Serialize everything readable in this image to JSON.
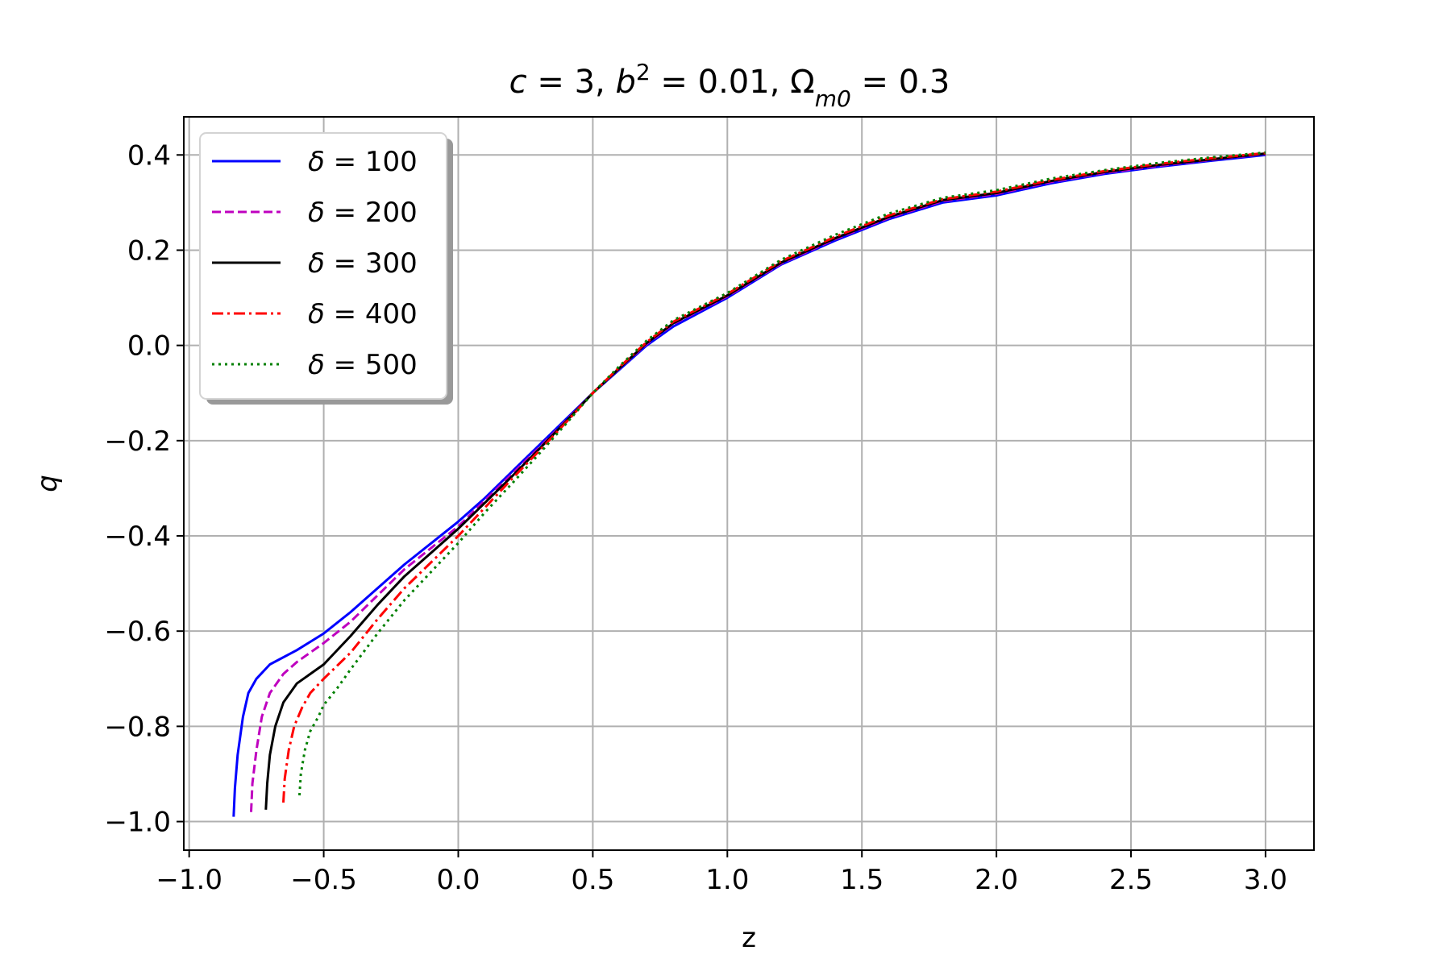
{
  "chart_data": {
    "type": "line",
    "title": {
      "c_sym": "c",
      "c_val": " = 3, ",
      "b_sym": "b",
      "b_sup": "2",
      "b_val": " = 0.01, ",
      "om_sym": "Ω",
      "om_sub": "m0",
      "om_val": " = 0.3"
    },
    "xlabel": "z",
    "ylabel": "q",
    "xlim": [
      -1.02,
      3.18
    ],
    "ylim": [
      -1.06,
      0.48
    ],
    "xticks": [
      -1.0,
      -0.5,
      0.0,
      0.5,
      1.0,
      1.5,
      2.0,
      2.5,
      3.0
    ],
    "xtick_labels": [
      "−1.0",
      "−0.5",
      "0.0",
      "0.5",
      "1.0",
      "1.5",
      "2.0",
      "2.5",
      "3.0"
    ],
    "yticks": [
      0.4,
      0.2,
      0.0,
      -0.2,
      -0.4,
      -0.6,
      -0.8,
      -1.0
    ],
    "ytick_labels": [
      "0.4",
      "0.2",
      "0.0",
      "−0.2",
      "−0.4",
      "−0.6",
      "−0.8",
      "−1.0"
    ],
    "grid": true,
    "legend_position": "top-left",
    "legend_symbol": "δ",
    "series": [
      {
        "name": "δ = 100",
        "label_value": "100",
        "color": "#0000ff",
        "dash": "solid",
        "points": [
          [
            -0.835,
            -0.99
          ],
          [
            -0.83,
            -0.93
          ],
          [
            -0.82,
            -0.86
          ],
          [
            -0.8,
            -0.78
          ],
          [
            -0.78,
            -0.73
          ],
          [
            -0.75,
            -0.7
          ],
          [
            -0.7,
            -0.67
          ],
          [
            -0.6,
            -0.64
          ],
          [
            -0.5,
            -0.605
          ],
          [
            -0.4,
            -0.56
          ],
          [
            -0.3,
            -0.51
          ],
          [
            -0.2,
            -0.46
          ],
          [
            -0.1,
            -0.415
          ],
          [
            0.0,
            -0.37
          ],
          [
            0.1,
            -0.32
          ],
          [
            0.2,
            -0.265
          ],
          [
            0.3,
            -0.21
          ],
          [
            0.4,
            -0.155
          ],
          [
            0.5,
            -0.1
          ],
          [
            0.6,
            -0.05
          ],
          [
            0.7,
            0.0
          ],
          [
            0.8,
            0.04
          ],
          [
            1.0,
            0.1
          ],
          [
            1.2,
            0.17
          ],
          [
            1.4,
            0.22
          ],
          [
            1.6,
            0.265
          ],
          [
            1.8,
            0.3
          ],
          [
            2.0,
            0.315
          ],
          [
            2.2,
            0.34
          ],
          [
            2.4,
            0.36
          ],
          [
            2.6,
            0.375
          ],
          [
            2.8,
            0.388
          ],
          [
            3.0,
            0.4
          ]
        ]
      },
      {
        "name": "δ = 200",
        "label_value": "200",
        "color": "#bf00bf",
        "dash": "dashed",
        "points": [
          [
            -0.77,
            -0.98
          ],
          [
            -0.765,
            -0.92
          ],
          [
            -0.75,
            -0.85
          ],
          [
            -0.73,
            -0.78
          ],
          [
            -0.7,
            -0.73
          ],
          [
            -0.65,
            -0.69
          ],
          [
            -0.6,
            -0.665
          ],
          [
            -0.5,
            -0.625
          ],
          [
            -0.4,
            -0.58
          ],
          [
            -0.3,
            -0.525
          ],
          [
            -0.2,
            -0.47
          ],
          [
            -0.1,
            -0.425
          ],
          [
            0.0,
            -0.38
          ],
          [
            0.1,
            -0.325
          ],
          [
            0.2,
            -0.27
          ],
          [
            0.3,
            -0.215
          ],
          [
            0.4,
            -0.158
          ],
          [
            0.5,
            -0.1
          ],
          [
            0.6,
            -0.048
          ],
          [
            0.7,
            0.003
          ],
          [
            0.8,
            0.045
          ],
          [
            1.0,
            0.103
          ],
          [
            1.2,
            0.172
          ],
          [
            1.4,
            0.223
          ],
          [
            1.6,
            0.268
          ],
          [
            1.8,
            0.303
          ],
          [
            2.0,
            0.318
          ],
          [
            2.2,
            0.343
          ],
          [
            2.4,
            0.362
          ],
          [
            2.6,
            0.377
          ],
          [
            2.8,
            0.39
          ],
          [
            3.0,
            0.402
          ]
        ]
      },
      {
        "name": "δ = 300",
        "label_value": "300",
        "color": "#000000",
        "dash": "solid",
        "points": [
          [
            -0.715,
            -0.975
          ],
          [
            -0.71,
            -0.92
          ],
          [
            -0.7,
            -0.86
          ],
          [
            -0.68,
            -0.8
          ],
          [
            -0.65,
            -0.75
          ],
          [
            -0.6,
            -0.71
          ],
          [
            -0.5,
            -0.67
          ],
          [
            -0.4,
            -0.61
          ],
          [
            -0.3,
            -0.545
          ],
          [
            -0.2,
            -0.485
          ],
          [
            -0.1,
            -0.435
          ],
          [
            0.0,
            -0.385
          ],
          [
            0.1,
            -0.33
          ],
          [
            0.2,
            -0.275
          ],
          [
            0.3,
            -0.218
          ],
          [
            0.4,
            -0.16
          ],
          [
            0.5,
            -0.1
          ],
          [
            0.6,
            -0.047
          ],
          [
            0.7,
            0.005
          ],
          [
            0.8,
            0.047
          ],
          [
            1.0,
            0.105
          ],
          [
            1.2,
            0.174
          ],
          [
            1.4,
            0.225
          ],
          [
            1.6,
            0.27
          ],
          [
            1.8,
            0.305
          ],
          [
            2.0,
            0.32
          ],
          [
            2.2,
            0.345
          ],
          [
            2.4,
            0.364
          ],
          [
            2.6,
            0.379
          ],
          [
            2.8,
            0.391
          ],
          [
            3.0,
            0.403
          ]
        ]
      },
      {
        "name": "δ = 400",
        "label_value": "400",
        "color": "#ff0000",
        "dash": "dashdot",
        "points": [
          [
            -0.65,
            -0.96
          ],
          [
            -0.645,
            -0.91
          ],
          [
            -0.63,
            -0.85
          ],
          [
            -0.61,
            -0.8
          ],
          [
            -0.58,
            -0.76
          ],
          [
            -0.55,
            -0.73
          ],
          [
            -0.5,
            -0.7
          ],
          [
            -0.4,
            -0.645
          ],
          [
            -0.3,
            -0.575
          ],
          [
            -0.2,
            -0.51
          ],
          [
            -0.1,
            -0.455
          ],
          [
            0.0,
            -0.4
          ],
          [
            0.1,
            -0.34
          ],
          [
            0.2,
            -0.28
          ],
          [
            0.3,
            -0.222
          ],
          [
            0.4,
            -0.162
          ],
          [
            0.5,
            -0.1
          ],
          [
            0.6,
            -0.045
          ],
          [
            0.7,
            0.007
          ],
          [
            0.8,
            0.05
          ],
          [
            1.0,
            0.108
          ],
          [
            1.2,
            0.177
          ],
          [
            1.4,
            0.228
          ],
          [
            1.6,
            0.273
          ],
          [
            1.8,
            0.307
          ],
          [
            2.0,
            0.323
          ],
          [
            2.2,
            0.347
          ],
          [
            2.4,
            0.366
          ],
          [
            2.6,
            0.381
          ],
          [
            2.8,
            0.393
          ],
          [
            3.0,
            0.404
          ]
        ]
      },
      {
        "name": "δ = 500",
        "label_value": "500",
        "color": "#008000",
        "dash": "dotted",
        "points": [
          [
            -0.59,
            -0.945
          ],
          [
            -0.585,
            -0.9
          ],
          [
            -0.57,
            -0.85
          ],
          [
            -0.55,
            -0.81
          ],
          [
            -0.52,
            -0.78
          ],
          [
            -0.5,
            -0.755
          ],
          [
            -0.45,
            -0.72
          ],
          [
            -0.4,
            -0.68
          ],
          [
            -0.3,
            -0.605
          ],
          [
            -0.2,
            -0.535
          ],
          [
            -0.1,
            -0.475
          ],
          [
            0.0,
            -0.415
          ],
          [
            0.1,
            -0.35
          ],
          [
            0.2,
            -0.29
          ],
          [
            0.3,
            -0.228
          ],
          [
            0.4,
            -0.165
          ],
          [
            0.5,
            -0.1
          ],
          [
            0.6,
            -0.043
          ],
          [
            0.7,
            0.01
          ],
          [
            0.8,
            0.053
          ],
          [
            1.0,
            0.11
          ],
          [
            1.2,
            0.18
          ],
          [
            1.4,
            0.232
          ],
          [
            1.6,
            0.277
          ],
          [
            1.8,
            0.31
          ],
          [
            2.0,
            0.326
          ],
          [
            2.2,
            0.35
          ],
          [
            2.4,
            0.368
          ],
          [
            2.6,
            0.383
          ],
          [
            2.8,
            0.395
          ],
          [
            3.0,
            0.405
          ]
        ]
      }
    ]
  }
}
